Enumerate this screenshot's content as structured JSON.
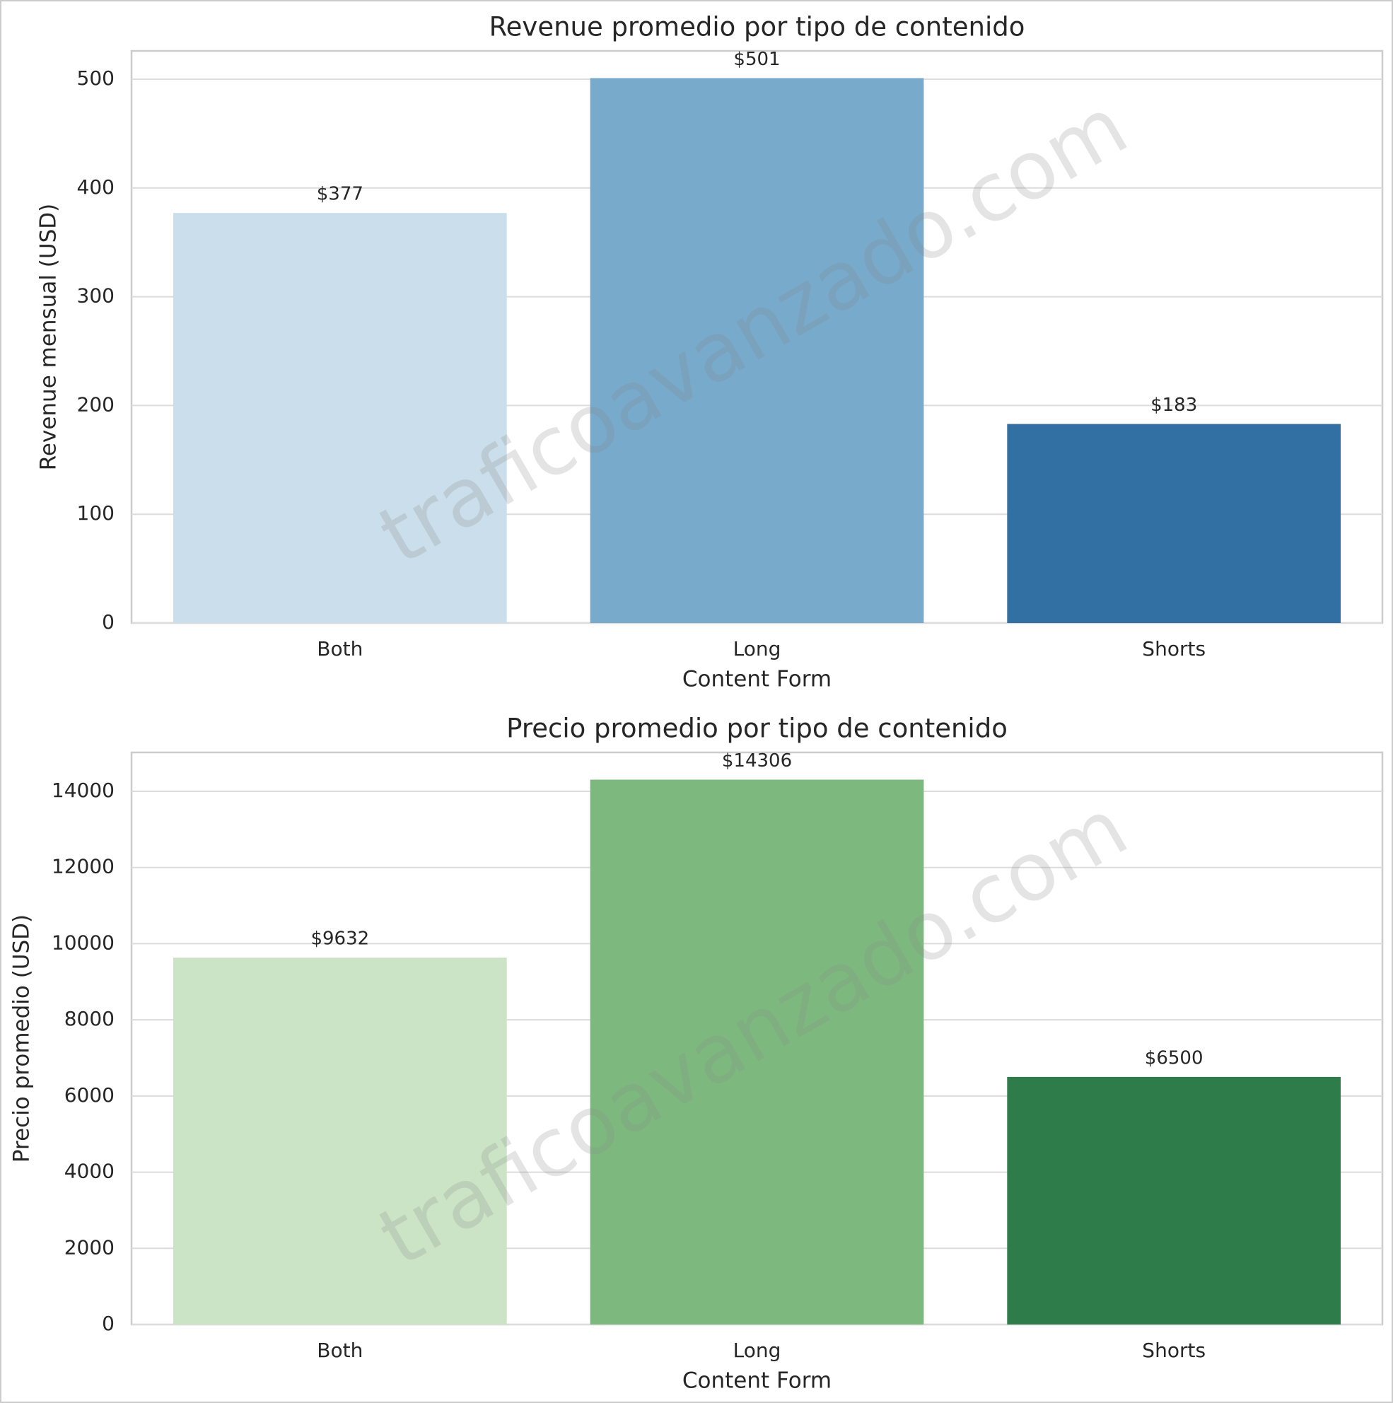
{
  "chart_data": [
    {
      "type": "bar",
      "title": "Revenue promedio por tipo de contenido",
      "xlabel": "Content Form",
      "ylabel": "Revenue mensual (USD)",
      "categories": [
        "Both",
        "Long",
        "Shorts"
      ],
      "values": [
        377,
        501,
        183
      ],
      "value_labels": [
        "$377",
        "$501",
        "$183"
      ],
      "colors": [
        "#cbdeeb",
        "#77aacb",
        "#3270a3"
      ],
      "ylim": [
        0,
        526
      ],
      "yticks": [
        0,
        100,
        200,
        300,
        400,
        500
      ],
      "grid": true,
      "watermark": "traficoavanzado.com"
    },
    {
      "type": "bar",
      "title": "Precio promedio por tipo de contenido",
      "xlabel": "Content Form",
      "ylabel": "Precio promedio (USD)",
      "categories": [
        "Both",
        "Long",
        "Shorts"
      ],
      "values": [
        9632,
        14306,
        6500
      ],
      "value_labels": [
        "$9632",
        "$14306",
        "$6500"
      ],
      "colors": [
        "#cbe4c6",
        "#7db97f",
        "#2e7c49"
      ],
      "ylim": [
        0,
        15021
      ],
      "yticks": [
        0,
        2000,
        4000,
        6000,
        8000,
        10000,
        12000,
        14000
      ],
      "grid": true,
      "watermark": "traficoavanzado.com"
    }
  ]
}
